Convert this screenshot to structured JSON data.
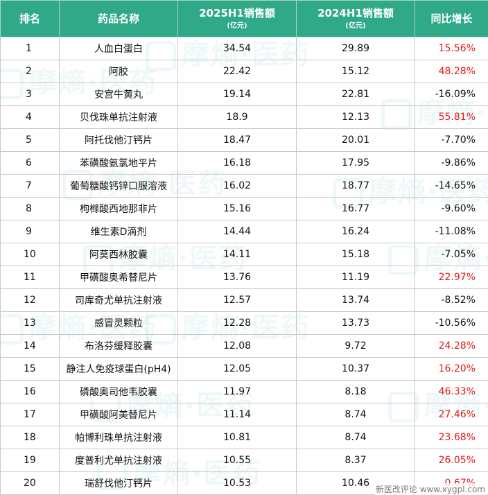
{
  "header": {
    "rank": "排名",
    "drug_name": "药品名称",
    "sales_2025h1": "2025H1销售额",
    "sales_2025h1_unit": "(亿元)",
    "sales_2024h1": "2024H1销售额",
    "sales_2024h1_unit": "(亿元)",
    "yoy_growth": "同比增长"
  },
  "rows": [
    {
      "rank": "1",
      "name": "人血白蛋白",
      "s2025": "34.54",
      "s2024": "29.89",
      "growth": "15.56%",
      "positive": true
    },
    {
      "rank": "2",
      "name": "阿胶",
      "s2025": "22.42",
      "s2024": "15.12",
      "growth": "48.28%",
      "positive": true
    },
    {
      "rank": "3",
      "name": "安宫牛黄丸",
      "s2025": "19.14",
      "s2024": "22.81",
      "growth": "-16.09%",
      "positive": false
    },
    {
      "rank": "4",
      "name": "贝伐珠单抗注射液",
      "s2025": "18.9",
      "s2024": "12.13",
      "growth": "55.81%",
      "positive": true
    },
    {
      "rank": "5",
      "name": "阿托伐他汀钙片",
      "s2025": "18.47",
      "s2024": "20.01",
      "growth": "-7.70%",
      "positive": false
    },
    {
      "rank": "6",
      "name": "苯磺酸氨氯地平片",
      "s2025": "16.18",
      "s2024": "17.95",
      "growth": "-9.86%",
      "positive": false
    },
    {
      "rank": "7",
      "name": "葡萄糖酸钙锌口服溶液",
      "s2025": "16.02",
      "s2024": "18.77",
      "growth": "-14.65%",
      "positive": false
    },
    {
      "rank": "8",
      "name": "枸橼酸西地那非片",
      "s2025": "15.16",
      "s2024": "16.77",
      "growth": "-9.60%",
      "positive": false
    },
    {
      "rank": "9",
      "name": "维生素D滴剂",
      "s2025": "14.44",
      "s2024": "16.24",
      "growth": "-11.08%",
      "positive": false
    },
    {
      "rank": "10",
      "name": "阿莫西林胶囊",
      "s2025": "14.11",
      "s2024": "15.18",
      "growth": "-7.05%",
      "positive": false
    },
    {
      "rank": "11",
      "name": "甲磺酸奥希替尼片",
      "s2025": "13.76",
      "s2024": "11.19",
      "growth": "22.97%",
      "positive": true
    },
    {
      "rank": "12",
      "name": "司库奇尤单抗注射液",
      "s2025": "12.57",
      "s2024": "13.74",
      "growth": "-8.52%",
      "positive": false
    },
    {
      "rank": "13",
      "name": "感冒灵颗粒",
      "s2025": "12.28",
      "s2024": "13.73",
      "growth": "-10.56%",
      "positive": false
    },
    {
      "rank": "14",
      "name": "布洛芬缓释胶囊",
      "s2025": "12.08",
      "s2024": "9.72",
      "growth": "24.28%",
      "positive": true
    },
    {
      "rank": "15",
      "name": "静注人免疫球蛋白(pH4)",
      "s2025": "12.05",
      "s2024": "10.37",
      "growth": "16.20%",
      "positive": true
    },
    {
      "rank": "16",
      "name": "磷酸奥司他韦胶囊",
      "s2025": "11.97",
      "s2024": "8.18",
      "growth": "46.33%",
      "positive": true
    },
    {
      "rank": "17",
      "name": "甲磺酸阿美替尼片",
      "s2025": "11.14",
      "s2024": "8.74",
      "growth": "27.46%",
      "positive": true
    },
    {
      "rank": "18",
      "name": "帕博利珠单抗注射液",
      "s2025": "10.81",
      "s2024": "8.74",
      "growth": "23.68%",
      "positive": true
    },
    {
      "rank": "19",
      "name": "度普利尤单抗注射液",
      "s2025": "10.55",
      "s2024": "8.37",
      "growth": "26.05%",
      "positive": true
    },
    {
      "rank": "20",
      "name": "瑞舒伐他汀钙片",
      "s2025": "10.53",
      "s2024": "10.46",
      "growth": "0.67%",
      "positive": true
    }
  ],
  "watermark": {
    "text": "摩熵·医药"
  },
  "source_credit": "新医改评论 www.xygpl.com",
  "colors": {
    "header_bg": "#2fa987",
    "positive_growth": "#e11919",
    "negative_growth": "#111111"
  }
}
